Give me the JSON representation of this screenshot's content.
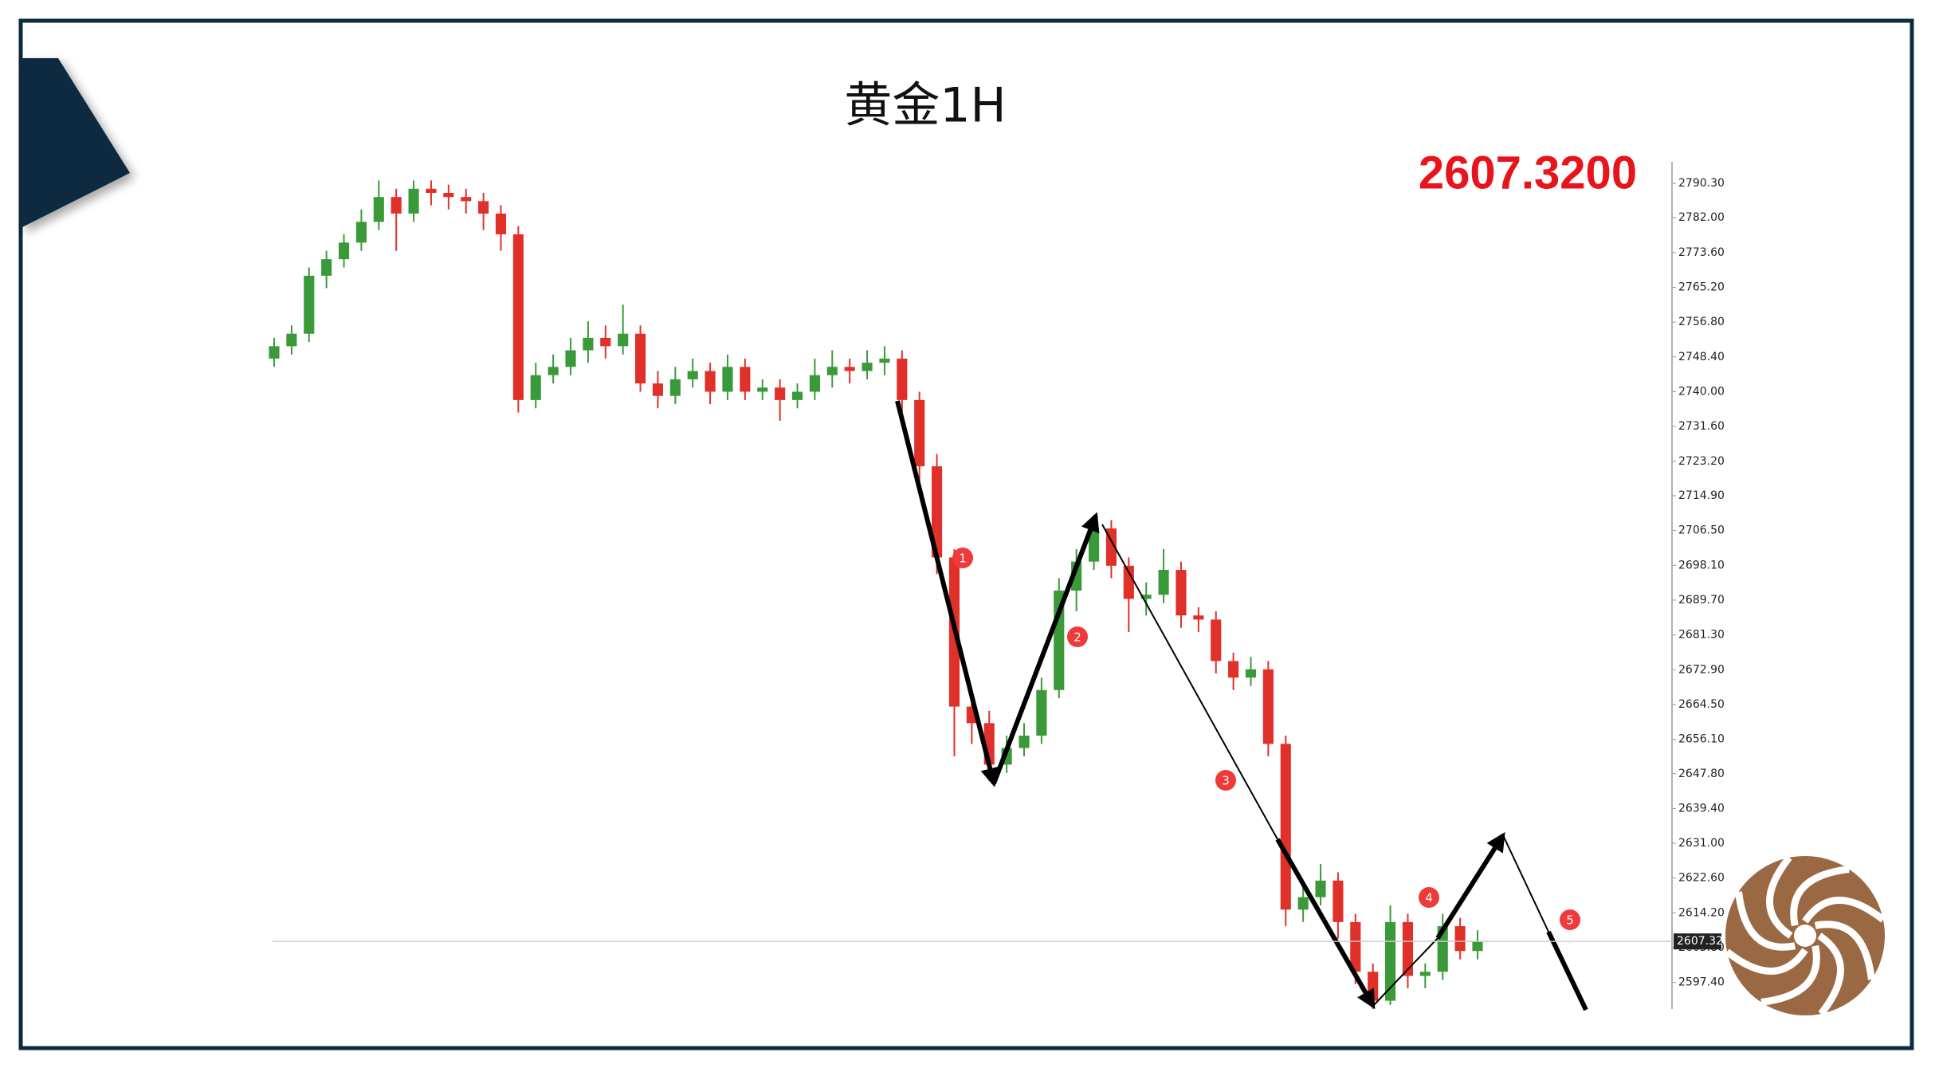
{
  "chart_data": {
    "type": "candlestick",
    "title": "黄金1H",
    "price_label": {
      "value": 2607.32,
      "label": "2607.3200"
    },
    "last_price": 2607.32,
    "up_color": "#3a9a3a",
    "down_color": "#e0302a",
    "ylim": [
      2591,
      2795.5
    ],
    "yticks": [
      {
        "value": 2790.3,
        "label": "2790.30"
      },
      {
        "value": 2782.0,
        "label": "2782.00"
      },
      {
        "value": 2773.6,
        "label": "2773.60"
      },
      {
        "value": 2765.2,
        "label": "2765.20"
      },
      {
        "value": 2756.8,
        "label": "2756.80"
      },
      {
        "value": 2748.4,
        "label": "2748.40"
      },
      {
        "value": 2740.0,
        "label": "2740.00"
      },
      {
        "value": 2731.6,
        "label": "2731.60"
      },
      {
        "value": 2723.2,
        "label": "2723.20"
      },
      {
        "value": 2714.9,
        "label": "2714.90"
      },
      {
        "value": 2706.5,
        "label": "2706.50"
      },
      {
        "value": 2698.1,
        "label": "2698.10"
      },
      {
        "value": 2689.7,
        "label": "2689.70"
      },
      {
        "value": 2681.3,
        "label": "2681.30"
      },
      {
        "value": 2672.9,
        "label": "2672.90"
      },
      {
        "value": 2664.5,
        "label": "2664.50"
      },
      {
        "value": 2656.1,
        "label": "2656.10"
      },
      {
        "value": 2647.8,
        "label": "2647.80"
      },
      {
        "value": 2639.4,
        "label": "2639.40"
      },
      {
        "value": 2631.0,
        "label": "2631.00"
      },
      {
        "value": 2622.6,
        "label": "2622.60"
      },
      {
        "value": 2614.2,
        "label": "2614.20"
      },
      {
        "value": 2605.8,
        "label": "2605.80"
      },
      {
        "value": 2597.4,
        "label": "2597.40"
      }
    ],
    "ohlc": [
      [
        2748,
        2753,
        2746,
        2751
      ],
      [
        2751,
        2756,
        2749,
        2754
      ],
      [
        2754,
        2770,
        2752,
        2768
      ],
      [
        2768,
        2774,
        2765,
        2772
      ],
      [
        2772,
        2778,
        2770,
        2776
      ],
      [
        2776,
        2784,
        2774,
        2781
      ],
      [
        2781,
        2791,
        2779,
        2787
      ],
      [
        2787,
        2789,
        2774,
        2783
      ],
      [
        2783,
        2791,
        2781,
        2789
      ],
      [
        2789,
        2791,
        2785,
        2788
      ],
      [
        2788,
        2790,
        2784,
        2787
      ],
      [
        2787,
        2789,
        2783,
        2786
      ],
      [
        2786,
        2788,
        2779,
        2783
      ],
      [
        2783,
        2785,
        2774,
        2778
      ],
      [
        2778,
        2780,
        2735,
        2738
      ],
      [
        2738,
        2747,
        2736,
        2744
      ],
      [
        2744,
        2749,
        2742,
        2746
      ],
      [
        2746,
        2753,
        2744,
        2750
      ],
      [
        2750,
        2757,
        2747,
        2753
      ],
      [
        2753,
        2756,
        2748,
        2751
      ],
      [
        2751,
        2761,
        2749,
        2754
      ],
      [
        2754,
        2756,
        2740,
        2742
      ],
      [
        2742,
        2745,
        2736,
        2739
      ],
      [
        2739,
        2746,
        2737,
        2743
      ],
      [
        2743,
        2748,
        2741,
        2745
      ],
      [
        2745,
        2747,
        2737,
        2740
      ],
      [
        2740,
        2749,
        2738,
        2746
      ],
      [
        2746,
        2748,
        2738,
        2740
      ],
      [
        2740,
        2743,
        2738,
        2741
      ],
      [
        2741,
        2743,
        2733,
        2738
      ],
      [
        2738,
        2742,
        2736,
        2740
      ],
      [
        2740,
        2748,
        2738,
        2744
      ],
      [
        2744,
        2750,
        2741,
        2746
      ],
      [
        2746,
        2748,
        2742,
        2745
      ],
      [
        2745,
        2750,
        2743,
        2747
      ],
      [
        2747,
        2751,
        2744,
        2748
      ],
      [
        2748,
        2750,
        2735,
        2738
      ],
      [
        2738,
        2740,
        2718,
        2722
      ],
      [
        2722,
        2725,
        2696,
        2700
      ],
      [
        2700,
        2702,
        2652,
        2664
      ],
      [
        2664,
        2668,
        2655,
        2660
      ],
      [
        2660,
        2663,
        2646,
        2650
      ],
      [
        2650,
        2657,
        2648,
        2654
      ],
      [
        2654,
        2660,
        2652,
        2657
      ],
      [
        2657,
        2671,
        2655,
        2668
      ],
      [
        2668,
        2695,
        2666,
        2692
      ],
      [
        2692,
        2702,
        2687,
        2699
      ],
      [
        2699,
        2710,
        2697,
        2707
      ],
      [
        2707,
        2709,
        2695,
        2698
      ],
      [
        2698,
        2700,
        2682,
        2690
      ],
      [
        2690,
        2694,
        2686,
        2691
      ],
      [
        2691,
        2702,
        2689,
        2697
      ],
      [
        2697,
        2699,
        2683,
        2686
      ],
      [
        2686,
        2688,
        2682,
        2685
      ],
      [
        2685,
        2687,
        2672,
        2675
      ],
      [
        2675,
        2677,
        2668,
        2671
      ],
      [
        2671,
        2676,
        2669,
        2673
      ],
      [
        2673,
        2675,
        2652,
        2655
      ],
      [
        2655,
        2657,
        2611,
        2615
      ],
      [
        2615,
        2621,
        2612,
        2618
      ],
      [
        2618,
        2626,
        2616,
        2622
      ],
      [
        2622,
        2624,
        2608,
        2612
      ],
      [
        2612,
        2614,
        2597,
        2600
      ],
      [
        2600,
        2602,
        2591,
        2593
      ],
      [
        2593,
        2616,
        2592,
        2612
      ],
      [
        2612,
        2614,
        2596,
        2599
      ],
      [
        2599,
        2602,
        2596,
        2600
      ],
      [
        2600,
        2614,
        2598,
        2611
      ],
      [
        2611,
        2613,
        2603,
        2605
      ],
      [
        2605,
        2610,
        2603,
        2607.32
      ]
    ],
    "annotations": [
      "1",
      "2",
      "3",
      "4",
      "5"
    ]
  }
}
